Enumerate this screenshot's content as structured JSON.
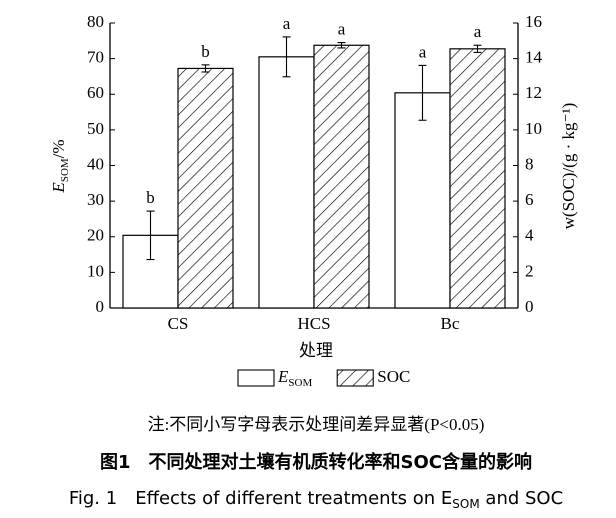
{
  "chart_data": {
    "type": "bar",
    "categories": [
      "CS",
      "HCS",
      "Bc"
    ],
    "series": [
      {
        "name": "E",
        "name_sub": "SOM",
        "color": "#000000",
        "fill": "none",
        "axis": "y",
        "values": [
          20.4,
          70.5,
          60.4
        ],
        "errors": [
          6.8,
          5.6,
          7.7
        ],
        "significance": [
          "b",
          "a",
          "a"
        ]
      },
      {
        "name": "SOC",
        "color": "#000000",
        "fill": "hatch",
        "axis": "y2",
        "values": [
          13.45,
          14.75,
          14.55
        ],
        "errors": [
          0.2,
          0.15,
          0.2
        ],
        "significance": [
          "b",
          "a",
          "a"
        ]
      }
    ],
    "ylim": [
      0,
      80
    ],
    "yticks": [
      0,
      10,
      20,
      30,
      40,
      50,
      60,
      70,
      80
    ],
    "y2lim": [
      0,
      16
    ],
    "y2ticks": [
      0,
      2,
      4,
      6,
      8,
      10,
      12,
      14,
      16
    ],
    "xlabel": "处理",
    "ylabel": {
      "main": "E",
      "sub": "SOM",
      "rest": "/%"
    },
    "y2label": "w(SOC)/(g · kg⁻¹)",
    "note": "注:不同小写字母表示处理间差异显著(P<0.05)",
    "caption_cn": "图1　不同处理对土壤有机质转化率和SOC含量的影响",
    "caption_en": {
      "main": "Fig. 1　Effects of different treatments on E",
      "sub": "SOM",
      "rest": " and SOC"
    }
  }
}
